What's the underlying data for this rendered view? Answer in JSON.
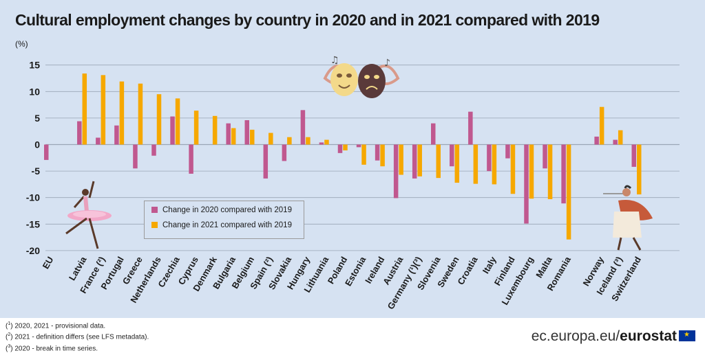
{
  "title": "Cultural employment changes by country in 2020 and in 2021 compared with 2019",
  "unit": "(%)",
  "colors": {
    "s2020": "#c0588f",
    "s2021": "#f6a800",
    "background": "#d6e2f2",
    "gridline": "#9aa6b6"
  },
  "legend": {
    "items": [
      {
        "label": "Change in 2020 compared with 2019",
        "color": "#c0588f"
      },
      {
        "label": "Change in 2021 compared with 2019",
        "color": "#f6a800"
      }
    ]
  },
  "footnotes": [
    {
      "mark": "1",
      "text": "2020, 2021 - provisional data."
    },
    {
      "mark": "2",
      "text": "2021 - definition differs (see LFS metadata)."
    },
    {
      "mark": "3",
      "text": "2020 - break in time series."
    }
  ],
  "source": {
    "prefix": "ec.europa.eu/",
    "brand": "eurostat"
  },
  "decorations": {
    "left": "ballet-dancer-icon",
    "center": "theatre-masks-icon",
    "right": "flute-player-icon"
  },
  "chart_data": {
    "type": "bar",
    "ylim": [
      -20,
      15
    ],
    "yticks": [
      -20,
      -15,
      -10,
      -5,
      0,
      5,
      10,
      15
    ],
    "grid": true,
    "legend_position": "bottom-left",
    "categories": [
      "EU",
      "Latvia",
      "France (²)",
      "Portugal",
      "Greece",
      "Netherlands",
      "Czechia",
      "Cyprus",
      "Denmark",
      "Bulgaria",
      "Belgium",
      "Spain (²)",
      "Slovakia",
      "Hungary",
      "Lithuania",
      "Poland",
      "Estonia",
      "Ireland",
      "Austria",
      "Germany (¹)(³)",
      "Slovenia",
      "Sweden",
      "Croatia",
      "Italy",
      "Finland",
      "Luxembourg",
      "Malta",
      "Romania",
      "Norway",
      "Iceland (³)",
      "Switzerland"
    ],
    "gap_before": [
      "Latvia",
      "Norway"
    ],
    "series": [
      {
        "name": "Change in 2020 compared with 2019",
        "values": [
          -2.9,
          4.4,
          1.3,
          3.6,
          -4.5,
          -2.1,
          5.3,
          -5.5,
          0.0,
          4.0,
          4.6,
          -6.4,
          -3.1,
          6.5,
          0.4,
          -1.6,
          -0.5,
          -3.0,
          -10.1,
          -6.4,
          4.0,
          -4.1,
          6.2,
          -5.0,
          -2.6,
          -14.9,
          -4.5,
          -11.1,
          1.5,
          0.9,
          -4.2
        ]
      },
      {
        "name": "Change in 2021 compared with 2019",
        "values": [
          null,
          13.4,
          13.1,
          11.9,
          11.5,
          9.5,
          8.7,
          6.4,
          5.4,
          3.1,
          2.8,
          2.2,
          1.4,
          1.4,
          0.9,
          -1.1,
          -3.8,
          -4.1,
          -5.7,
          -6.0,
          -6.3,
          -7.2,
          -7.4,
          -7.5,
          -9.3,
          -10.2,
          -10.3,
          -17.9,
          7.1,
          2.7,
          -9.4
        ]
      }
    ]
  }
}
